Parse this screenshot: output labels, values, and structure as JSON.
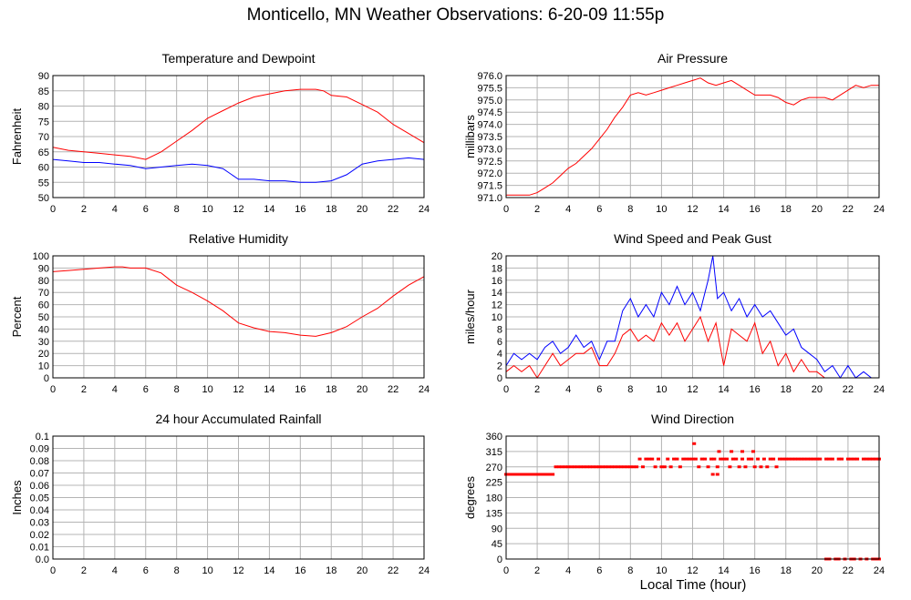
{
  "title": "Monticello, MN Weather Observations: 6-20-09 11:55p",
  "xlabel": "Local Time (hour)",
  "x_ticks": [
    0,
    2,
    4,
    6,
    8,
    10,
    12,
    14,
    16,
    18,
    20,
    22,
    24
  ],
  "colors": {
    "red": "#ff0000",
    "blue": "#0000ff",
    "grid": "#b4b4b4",
    "frame": "#000000"
  },
  "chart_data": [
    {
      "id": "temp",
      "type": "line",
      "title": "Temperature and Dewpoint",
      "ylabel": "Fahrenheit",
      "ylim": [
        50,
        90
      ],
      "yticks": [
        "50",
        "55",
        "60",
        "65",
        "70",
        "75",
        "80",
        "85",
        "90"
      ],
      "grid": true,
      "series": [
        {
          "color": "#ff0000",
          "x": [
            0,
            1,
            2,
            3,
            4,
            5,
            6,
            7,
            8,
            9,
            10,
            11,
            12,
            13,
            14,
            15,
            16,
            17,
            17.5,
            18,
            19,
            20,
            21,
            22,
            23,
            24
          ],
          "y": [
            66.5,
            65.5,
            65,
            64.5,
            64,
            63.5,
            62.5,
            65,
            68.5,
            72,
            76,
            78.5,
            81,
            83,
            84,
            85,
            85.5,
            85.5,
            85,
            83.5,
            83,
            80.5,
            78,
            74,
            71,
            68
          ]
        },
        {
          "color": "#0000ff",
          "x": [
            0,
            1,
            2,
            3,
            4,
            5,
            6,
            7,
            8,
            9,
            10,
            11,
            12,
            13,
            14,
            15,
            16,
            17,
            18,
            19,
            20,
            21,
            22,
            23,
            24
          ],
          "y": [
            62.5,
            62,
            61.5,
            61.5,
            61,
            60.5,
            59.5,
            60,
            60.5,
            61,
            60.5,
            59.5,
            56,
            56,
            55.5,
            55.5,
            55,
            55,
            55.5,
            57.5,
            61,
            62,
            62.5,
            63,
            62.5
          ]
        }
      ]
    },
    {
      "id": "pressure",
      "type": "line",
      "title": "Air Pressure",
      "ylabel": "millibars",
      "ylim": [
        971.0,
        976.0
      ],
      "yticks": [
        "971.0",
        "971.5",
        "972.0",
        "972.5",
        "973.0",
        "973.5",
        "974.0",
        "974.5",
        "975.0",
        "975.5",
        "976.0"
      ],
      "grid": true,
      "series": [
        {
          "color": "#ff0000",
          "x": [
            0,
            0.5,
            1,
            1.5,
            2,
            2.5,
            3,
            3.5,
            4,
            4.5,
            5,
            5.5,
            6,
            6.5,
            7,
            7.5,
            8,
            8.5,
            9,
            9.5,
            10,
            10.5,
            11,
            11.5,
            12,
            12.5,
            13,
            13.5,
            14,
            14.5,
            15,
            15.5,
            16,
            16.5,
            17,
            17.5,
            18,
            18.5,
            19,
            19.5,
            20,
            20.5,
            21,
            21.5,
            22,
            22.5,
            23,
            23.5,
            24
          ],
          "y": [
            971.1,
            971.1,
            971.1,
            971.1,
            971.2,
            971.4,
            971.6,
            971.9,
            972.2,
            972.4,
            972.7,
            973.0,
            973.4,
            973.8,
            974.3,
            974.7,
            975.2,
            975.3,
            975.2,
            975.3,
            975.4,
            975.5,
            975.6,
            975.7,
            975.8,
            975.9,
            975.7,
            975.6,
            975.7,
            975.8,
            975.6,
            975.4,
            975.2,
            975.2,
            975.2,
            975.1,
            974.9,
            974.8,
            975.0,
            975.1,
            975.1,
            975.1,
            975.0,
            975.2,
            975.4,
            975.6,
            975.5,
            975.6,
            975.6
          ]
        }
      ]
    },
    {
      "id": "humidity",
      "type": "line",
      "title": "Relative Humidity",
      "ylabel": "Percent",
      "ylim": [
        0,
        100
      ],
      "yticks": [
        "0",
        "10",
        "20",
        "30",
        "40",
        "50",
        "60",
        "70",
        "80",
        "90",
        "100"
      ],
      "grid": true,
      "series": [
        {
          "color": "#ff0000",
          "x": [
            0,
            1,
            2,
            3,
            4,
            4.5,
            5,
            6,
            7,
            8,
            9,
            10,
            11,
            12,
            13,
            14,
            15,
            16,
            17,
            18,
            19,
            20,
            21,
            22,
            23,
            24
          ],
          "y": [
            87,
            88,
            89,
            90,
            91,
            91,
            90,
            90,
            86,
            76,
            70,
            63,
            55,
            45,
            41,
            38,
            37,
            35,
            34,
            37,
            42,
            50,
            57,
            67,
            76,
            83
          ]
        }
      ]
    },
    {
      "id": "wind-speed",
      "type": "line",
      "title": "Wind Speed and Peak Gust",
      "ylabel": "miles/hour",
      "ylim": [
        0,
        20
      ],
      "yticks": [
        "0",
        "2",
        "4",
        "6",
        "8",
        "10",
        "12",
        "14",
        "16",
        "18",
        "20"
      ],
      "grid": true,
      "series": [
        {
          "color": "#0000ff",
          "x": [
            0,
            0.5,
            1,
            1.5,
            2,
            2.5,
            3,
            3.5,
            4,
            4.5,
            5,
            5.5,
            6,
            6.5,
            7,
            7.5,
            8,
            8.5,
            9,
            9.5,
            10,
            10.5,
            11,
            11.5,
            12,
            12.5,
            13,
            13.3,
            13.6,
            14,
            14.5,
            15,
            15.5,
            16,
            16.5,
            17,
            17.5,
            18,
            18.5,
            19,
            19.5,
            20,
            20.5,
            21,
            21.5,
            22,
            22.5,
            23,
            23.5,
            24
          ],
          "y": [
            2,
            4,
            3,
            4,
            3,
            5,
            6,
            4,
            5,
            7,
            5,
            6,
            3,
            6,
            6,
            11,
            13,
            10,
            12,
            10,
            14,
            12,
            15,
            12,
            14,
            11,
            16,
            20,
            13,
            14,
            11,
            13,
            10,
            12,
            10,
            11,
            9,
            7,
            8,
            5,
            4,
            3,
            1,
            2,
            0,
            2,
            0,
            1,
            0,
            0
          ]
        },
        {
          "color": "#ff0000",
          "x": [
            0,
            0.5,
            1,
            1.5,
            2,
            2.5,
            3,
            3.5,
            4,
            4.5,
            5,
            5.5,
            6,
            6.5,
            7,
            7.5,
            8,
            8.5,
            9,
            9.5,
            10,
            10.5,
            11,
            11.5,
            12,
            12.5,
            13,
            13.5,
            14,
            14.5,
            15,
            15.5,
            16,
            16.5,
            17,
            17.5,
            18,
            18.5,
            19,
            19.5,
            20,
            20.5,
            21,
            22,
            23,
            24
          ],
          "y": [
            1,
            2,
            1,
            2,
            0,
            2,
            4,
            2,
            3,
            4,
            4,
            5,
            2,
            2,
            4,
            7,
            8,
            6,
            7,
            6,
            9,
            7,
            9,
            6,
            8,
            10,
            6,
            9,
            2,
            8,
            7,
            6,
            9,
            4,
            6,
            2,
            4,
            1,
            3,
            1,
            1,
            0,
            0,
            0,
            0,
            0
          ]
        }
      ]
    },
    {
      "id": "rain",
      "type": "line",
      "title": "24 hour Accumulated Rainfall",
      "ylabel": "Inches",
      "ylim": [
        0.0,
        0.1
      ],
      "yticks": [
        "0.0",
        "0.01",
        "0.02",
        "0.03",
        "0.04",
        "0.05",
        "0.06",
        "0.07",
        "0.08",
        "0.09",
        "0.1"
      ],
      "grid": true,
      "series": [
        {
          "color": "#ff0000",
          "x": [
            0,
            24
          ],
          "y": [
            0.0,
            0.0
          ]
        }
      ]
    },
    {
      "id": "wind-dir",
      "type": "scatter",
      "title": "Wind Direction",
      "ylabel": "degrees",
      "ylim": [
        0,
        360
      ],
      "yticks": [
        "0",
        "45",
        "90",
        "135",
        "180",
        "225",
        "270",
        "315",
        "360"
      ],
      "grid": true,
      "series": [
        {
          "color": "#ff0000",
          "x": [
            0,
            0.2,
            0.4,
            0.6,
            0.8,
            1,
            1.2,
            1.4,
            1.6,
            1.8,
            2,
            2.2,
            2.4,
            2.6,
            2.8,
            3,
            3.2,
            3.4,
            3.6,
            3.8,
            4,
            4.2,
            4.4,
            4.6,
            4.8,
            5,
            5.2,
            5.4,
            5.6,
            5.8,
            6,
            6.2,
            6.4,
            6.6,
            6.8,
            7,
            7.2,
            7.4,
            7.6,
            7.8,
            8,
            8.2,
            8.4,
            8.6,
            8.8,
            9,
            9.2,
            9.4,
            9.6,
            9.8,
            10,
            10.2,
            10.4,
            10.6,
            10.8,
            11,
            11.2,
            11.4,
            11.6,
            11.8,
            12,
            12.2,
            12.4,
            12.6,
            12.8,
            13,
            13.2,
            13.4,
            13.6,
            13.8,
            14,
            14.2,
            14.4,
            14.6,
            14.8,
            15,
            15.2,
            15.4,
            15.6,
            15.8,
            16,
            16.2,
            16.4,
            16.6,
            16.8,
            17,
            17.2,
            17.4,
            17.6,
            17.8,
            18,
            18.2,
            18.4,
            18.6,
            18.8,
            19,
            19.2,
            19.4,
            19.6,
            19.8,
            20,
            20.2,
            20.6,
            20.8,
            21,
            21.4,
            21.6,
            22,
            22.2,
            22.4,
            22.6,
            23,
            23.2,
            23.4,
            23.6,
            23.8,
            24,
            12.1,
            13.7,
            14.5,
            15.2,
            15.9,
            13.3,
            13.6,
            20.6,
            20.8,
            21.2,
            21.4,
            21.8,
            22.2,
            22.4,
            22.8,
            23.2,
            23.6,
            23.8,
            24
          ],
          "y": [
            248,
            248,
            248,
            248,
            248,
            248,
            248,
            248,
            248,
            248,
            248,
            248,
            248,
            248,
            248,
            248,
            270,
            270,
            270,
            270,
            270,
            270,
            270,
            270,
            270,
            270,
            270,
            270,
            270,
            270,
            270,
            270,
            270,
            270,
            270,
            270,
            270,
            270,
            270,
            270,
            270,
            270,
            270,
            293,
            270,
            293,
            293,
            293,
            270,
            293,
            270,
            270,
            293,
            270,
            293,
            293,
            270,
            293,
            293,
            293,
            293,
            293,
            270,
            293,
            293,
            270,
            293,
            293,
            270,
            293,
            293,
            293,
            270,
            293,
            293,
            270,
            293,
            270,
            293,
            293,
            270,
            293,
            270,
            293,
            270,
            293,
            293,
            270,
            293,
            293,
            293,
            293,
            293,
            293,
            293,
            293,
            293,
            293,
            293,
            293,
            293,
            293,
            293,
            293,
            293,
            293,
            293,
            293,
            293,
            293,
            293,
            293,
            293,
            293,
            293,
            293,
            293,
            338,
            315,
            315,
            315,
            315,
            248,
            248,
            0,
            0,
            0,
            0,
            0,
            0,
            0,
            0,
            0,
            0,
            0,
            0
          ]
        }
      ]
    }
  ]
}
